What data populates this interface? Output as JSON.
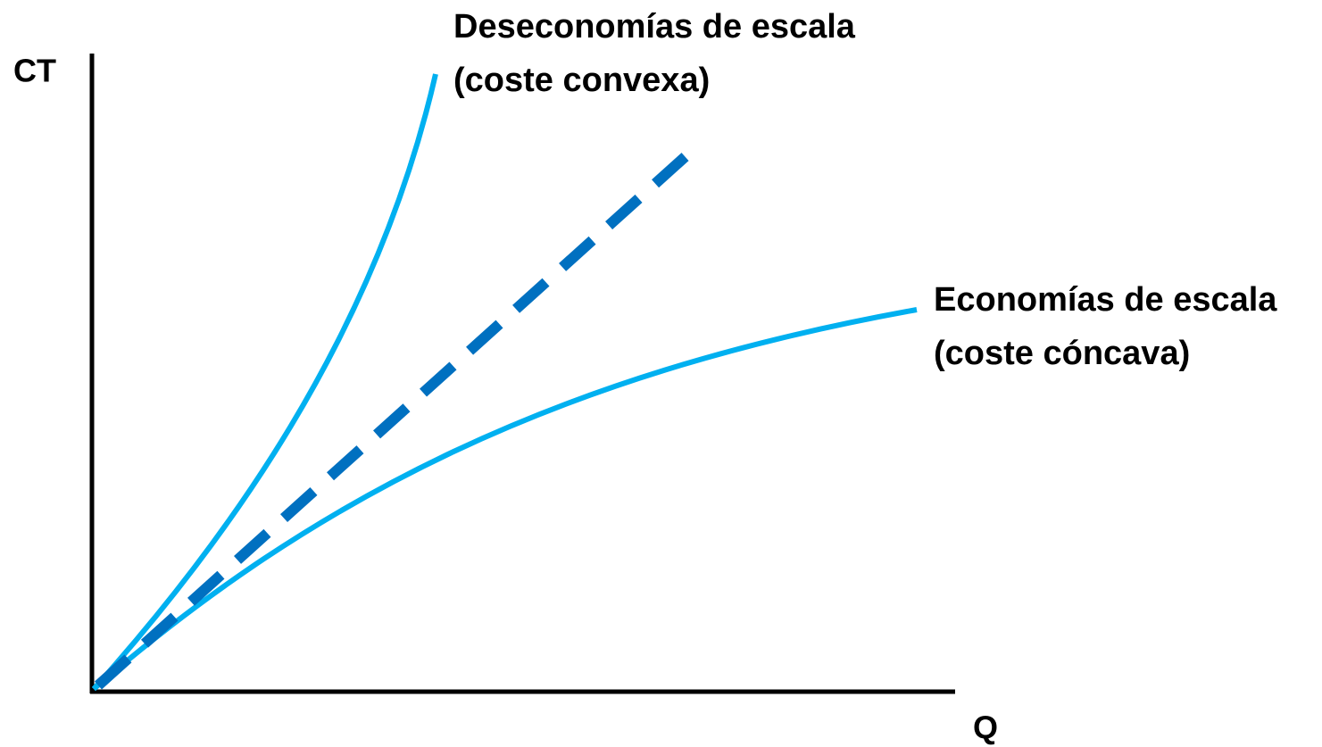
{
  "axes": {
    "y_label": "CT",
    "x_label": "Q"
  },
  "annotations": [
    {
      "lines": [
        "Deseconomías de escala",
        "(coste convexa)"
      ]
    },
    {
      "lines": [
        "Economías de escala",
        "(coste cóncava)"
      ]
    }
  ]
}
